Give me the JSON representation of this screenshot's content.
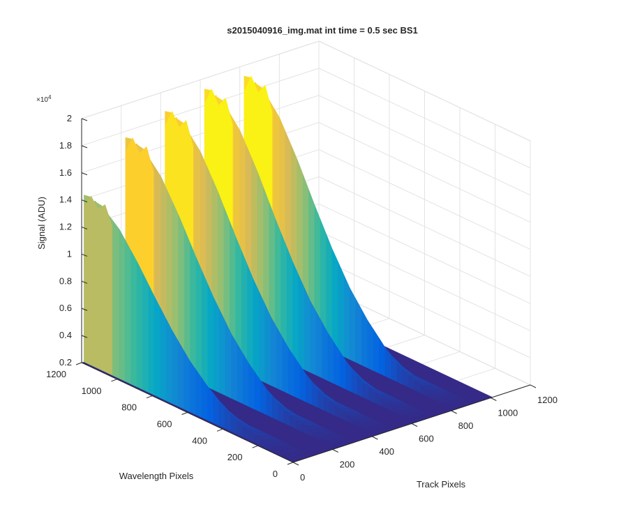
{
  "chart_data": {
    "type": "surface",
    "title": "s2015040916_img.mat int time = 0.5 sec   BS1",
    "xlabel": "Track Pixels",
    "ylabel": "Wavelength Pixels",
    "zlabel": "Signal (ADU)",
    "z_exponent_label": "×10",
    "z_exponent_power": "4",
    "xlim": [
      0,
      1200
    ],
    "ylim": [
      0,
      1200
    ],
    "zlim": [
      2000,
      20000
    ],
    "x_ticks": [
      "0",
      "200",
      "400",
      "600",
      "800",
      "1000",
      "1200"
    ],
    "y_ticks": [
      "0",
      "200",
      "400",
      "600",
      "800",
      "1000",
      "1200"
    ],
    "z_ticks": [
      "0.2",
      "0.4",
      "0.6",
      "0.8",
      "1",
      "1.2",
      "1.4",
      "1.6",
      "1.8",
      "2"
    ],
    "grid": true,
    "colormap": "parula",
    "colormap_colors": [
      "#352a87",
      "#0363e1",
      "#1485d4",
      "#06a7c6",
      "#38b99e",
      "#92bf73",
      "#d9ba56",
      "#fcce2e",
      "#f9fb0e"
    ],
    "series": [
      {
        "x_center": 0,
        "peak": 14500
      },
      {
        "x_center": 210,
        "peak": 17800
      },
      {
        "x_center": 410,
        "peak": 18800
      },
      {
        "x_center": 610,
        "peak": 19500
      },
      {
        "x_center": 810,
        "peak": 19500
      }
    ],
    "profile_along_wavelength": {
      "y": [
        0,
        100,
        200,
        300,
        400,
        500,
        600,
        700,
        800,
        900,
        1000,
        1100,
        1200
      ],
      "fraction_of_peak": [
        0.0,
        0.01,
        0.03,
        0.06,
        0.12,
        0.2,
        0.3,
        0.43,
        0.58,
        0.74,
        0.88,
        0.97,
        1.0
      ]
    }
  }
}
